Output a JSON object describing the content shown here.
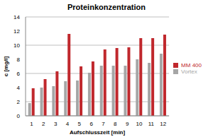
{
  "chart_data": {
    "type": "bar",
    "title": "Proteinkonzentration",
    "x_label": "Aufschlusszeit [min]",
    "y_label": "c [mg/l]",
    "categories": [
      1,
      2,
      3,
      4,
      5,
      6,
      7,
      8,
      9,
      10,
      11,
      12
    ],
    "series": [
      {
        "name": "Vortex",
        "color": "#a6a6a6",
        "values": [
          1.8,
          4.0,
          4.2,
          4.9,
          5.0,
          6.1,
          7.1,
          7.1,
          7.1,
          8.0,
          7.5,
          8.8
        ]
      },
      {
        "name": "MM 400",
        "color": "#c0282d",
        "values": [
          3.9,
          5.2,
          6.3,
          11.6,
          7.0,
          7.7,
          9.4,
          9.6,
          9.7,
          11.0,
          11.0,
          11.5
        ]
      }
    ],
    "ylim": [
      0,
      14
    ],
    "yticks": [
      0,
      2,
      4,
      6,
      8,
      10,
      12,
      14
    ],
    "grid": true,
    "legend": "right"
  }
}
